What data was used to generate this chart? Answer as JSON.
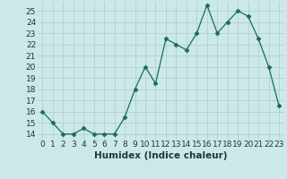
{
  "x": [
    0,
    1,
    2,
    3,
    4,
    5,
    6,
    7,
    8,
    9,
    10,
    11,
    12,
    13,
    14,
    15,
    16,
    17,
    18,
    19,
    20,
    21,
    22,
    23
  ],
  "y": [
    16,
    15,
    14,
    14,
    14.5,
    14,
    14,
    14,
    15.5,
    18,
    20,
    18.5,
    22.5,
    22,
    21.5,
    23,
    25.5,
    23,
    24,
    25,
    24.5,
    22.5,
    20,
    16.5
  ],
  "line_color": "#1a6b5a",
  "marker": "D",
  "marker_size": 2.5,
  "bg_color": "#cce8e8",
  "grid_color": "#aacece",
  "xlabel": "Humidex (Indice chaleur)",
  "xlim": [
    -0.5,
    23.5
  ],
  "ylim": [
    13.5,
    25.8
  ],
  "xticks": [
    0,
    1,
    2,
    3,
    4,
    5,
    6,
    7,
    8,
    9,
    10,
    11,
    12,
    13,
    14,
    15,
    16,
    17,
    18,
    19,
    20,
    21,
    22,
    23
  ],
  "yticks": [
    14,
    15,
    16,
    17,
    18,
    19,
    20,
    21,
    22,
    23,
    24,
    25
  ],
  "xlabel_fontsize": 7.5,
  "tick_fontsize": 6.5
}
